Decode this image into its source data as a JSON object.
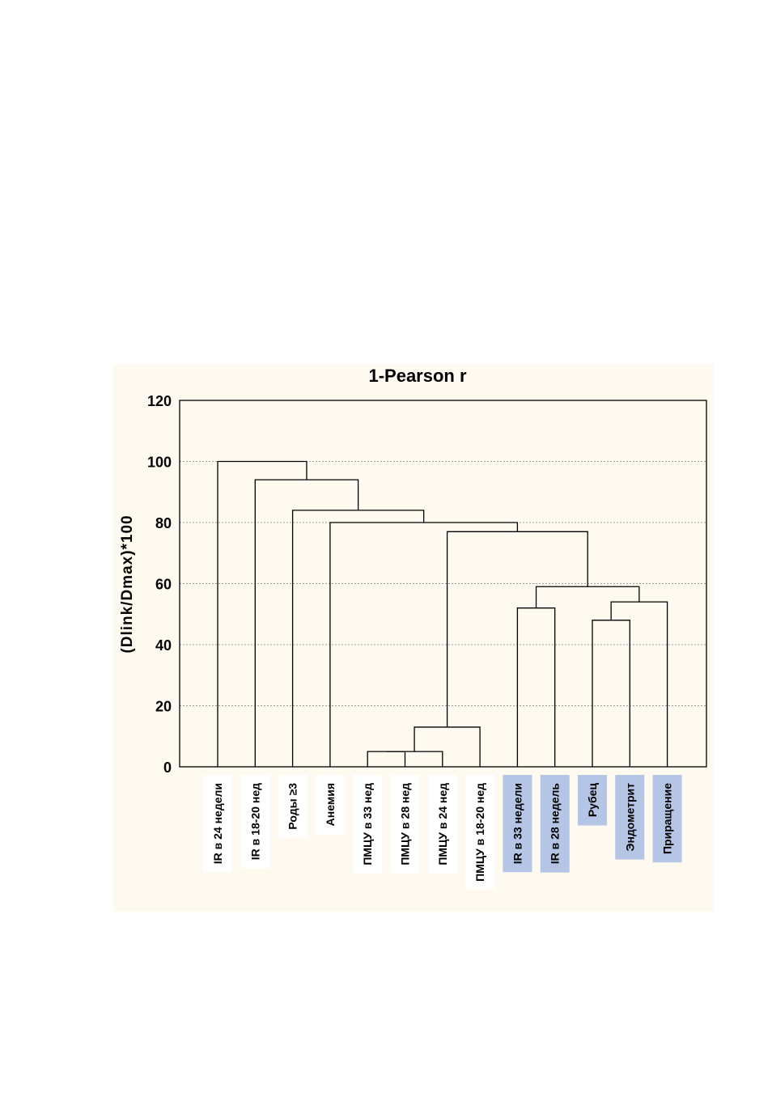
{
  "chart_data": {
    "type": "dendrogram",
    "title": "1-Pearson r",
    "ylabel": "(Dlink/Dmax)*100",
    "ylim": [
      0,
      120
    ],
    "yticks": [
      0,
      20,
      40,
      60,
      80,
      100,
      120
    ],
    "grid": true,
    "colors": {
      "panel_bg": "#fffaf0",
      "highlight": "#b5c5e6",
      "label_bg": "#ffffff"
    },
    "leaves": [
      {
        "label": "IR в 24 недели",
        "highlight": false
      },
      {
        "label": "IR в 18-20 нед",
        "highlight": false
      },
      {
        "label": "Роды ≥3",
        "highlight": false
      },
      {
        "label": "Анемия",
        "highlight": false
      },
      {
        "label": "ПМЦУ в 33 нед",
        "highlight": false
      },
      {
        "label": "ПМЦУ в 28 нед",
        "highlight": false
      },
      {
        "label": "ПМЦУ в 24 нед",
        "highlight": false
      },
      {
        "label": "ПМЦУ в 18-20 нед",
        "highlight": false
      },
      {
        "label": "IR в 33 недели",
        "highlight": true
      },
      {
        "label": "IR в 28 недель",
        "highlight": true
      },
      {
        "label": "Рубец",
        "highlight": true
      },
      {
        "label": "Эндометрит",
        "highlight": true
      },
      {
        "label": "Приращение",
        "highlight": true
      }
    ],
    "merges": [
      {
        "id": "c1",
        "left": "L4",
        "right": "L5",
        "height": 5
      },
      {
        "id": "c2",
        "left": "c1",
        "right": "L6",
        "height": 5
      },
      {
        "id": "c3",
        "left": "c2",
        "right": "L7",
        "height": 13
      },
      {
        "id": "c4",
        "left": "L10",
        "right": "L11",
        "height": 48
      },
      {
        "id": "c5",
        "left": "L8",
        "right": "L9",
        "height": 52
      },
      {
        "id": "c6",
        "left": "c4",
        "right": "L12",
        "height": 54
      },
      {
        "id": "c7",
        "left": "c5",
        "right": "c6",
        "height": 59
      },
      {
        "id": "c8",
        "left": "c3",
        "right": "c7",
        "height": 77
      },
      {
        "id": "c9",
        "left": "L3",
        "right": "c8",
        "height": 80
      },
      {
        "id": "c10",
        "left": "L2",
        "right": "c9",
        "height": 84
      },
      {
        "id": "c11",
        "left": "L1",
        "right": "c10",
        "height": 94
      },
      {
        "id": "c12",
        "left": "L0",
        "right": "c11",
        "height": 100
      }
    ]
  }
}
